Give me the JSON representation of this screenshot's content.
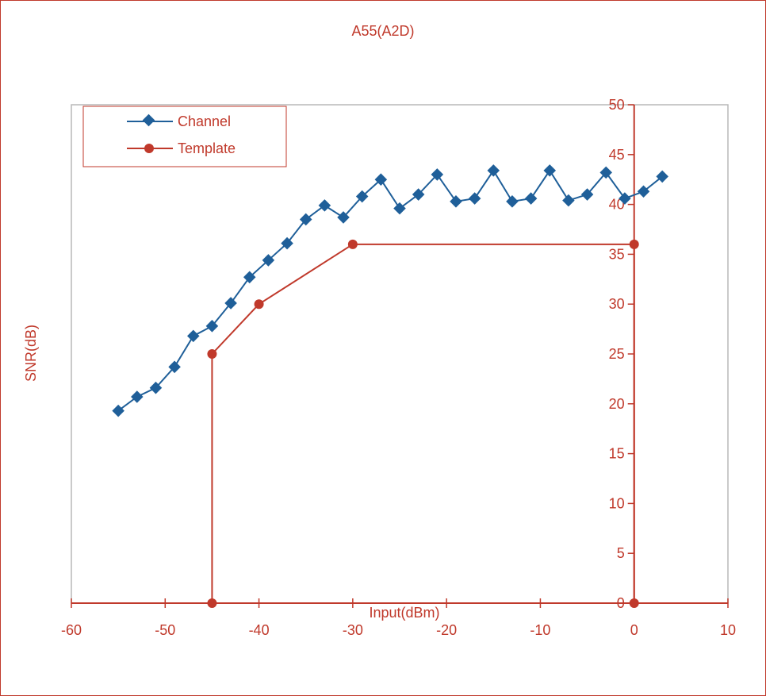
{
  "chart_data": {
    "type": "line",
    "title": "A55(A2D)",
    "xlabel": "Input(dBm)",
    "ylabel": "SNR(dB)",
    "xlim": [
      -60,
      10
    ],
    "ylim": [
      0,
      50
    ],
    "x_ticks": [
      "-60",
      "-50",
      "-40",
      "-30",
      "-20",
      "-10",
      "0",
      "10"
    ],
    "y_ticks": [
      "0",
      "5",
      "10",
      "15",
      "20",
      "25",
      "30",
      "35",
      "40",
      "45",
      "50"
    ],
    "grid": false,
    "legend_position": "top-left",
    "series": [
      {
        "name": "Channel",
        "color": "#1f5f99",
        "marker": "diamond",
        "x": [
          -55,
          -53,
          -51,
          -49,
          -47,
          -45,
          -43,
          -41,
          -39,
          -37,
          -35,
          -33,
          -31,
          -29,
          -27,
          -25,
          -23,
          -21,
          -19,
          -17,
          -15,
          -13,
          -11,
          -9,
          -7,
          -5,
          -3,
          -1,
          1,
          3
        ],
        "y": [
          19.3,
          20.7,
          21.6,
          23.7,
          26.8,
          27.8,
          30.1,
          32.7,
          34.4,
          36.1,
          38.5,
          39.9,
          38.7,
          40.8,
          42.5,
          39.6,
          41.0,
          43.0,
          40.3,
          40.6,
          43.4,
          40.3,
          40.6,
          43.4,
          40.4,
          41.0,
          43.2,
          40.6,
          41.3,
          42.8
        ]
      },
      {
        "name": "Template",
        "color": "#c0392b",
        "marker": "circle",
        "x": [
          -45,
          -45,
          -40,
          -30,
          0,
          0
        ],
        "y": [
          0,
          25,
          30,
          36,
          36,
          0
        ]
      }
    ]
  }
}
